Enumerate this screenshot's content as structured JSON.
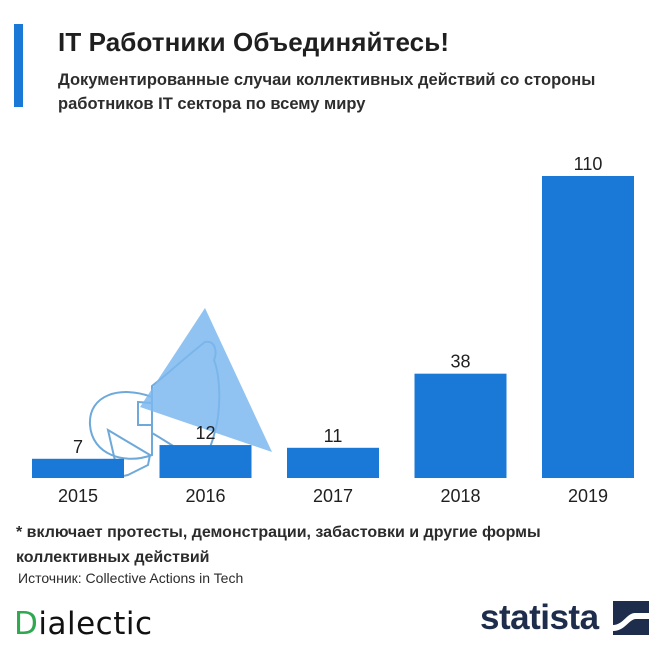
{
  "header": {
    "title": "IT Работники Объединяйтесь!",
    "subtitle": "Документированные случаи коллективных действий со стороны работников IT сектора по всему миру"
  },
  "chart_data": {
    "type": "bar",
    "categories": [
      "2015",
      "2016",
      "2017",
      "2018",
      "2019"
    ],
    "values": [
      7,
      12,
      11,
      38,
      110
    ],
    "title": "IT Работники Объединяйтесь!",
    "xlabel": "",
    "ylabel": "",
    "ylim": [
      0,
      110
    ],
    "grid": false,
    "bar_color": "#1a78d6"
  },
  "footer": {
    "footnote": "* включает протесты, демонстрации, забастовки и другие формы коллективных действий",
    "source": "Источник: Collective Actions in Tech"
  },
  "branding": {
    "left_first_letter": "D",
    "left_rest": "ialectic",
    "right_logo": "statista",
    "right_icon": "statista-wave-icon"
  },
  "colors": {
    "accent": "#1a78d6",
    "megaphone_fill": "#7db9ee",
    "megaphone_outline": "#6ea9d9",
    "dialectic_green": "#2fa84f",
    "statista_navy": "#1e2d4c"
  }
}
